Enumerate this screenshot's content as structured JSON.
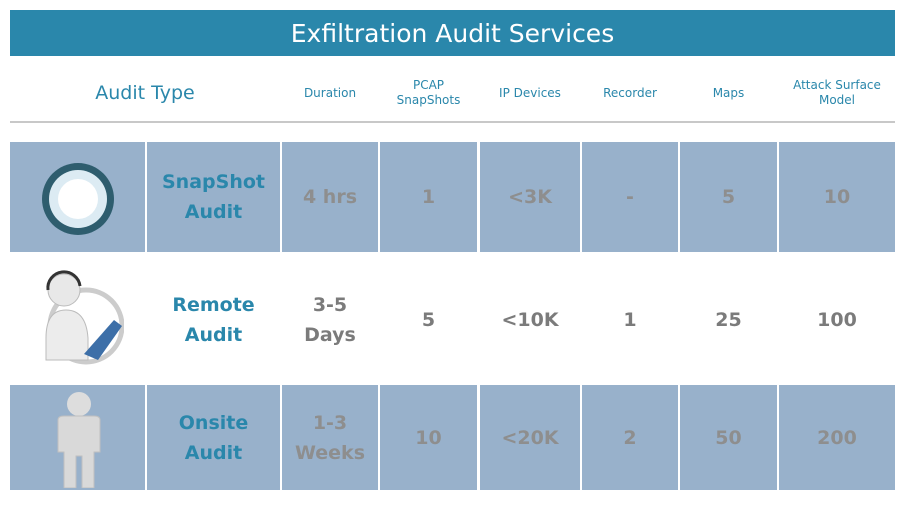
{
  "header": {
    "title": "Exfiltration Audit Services",
    "columns": [
      [
        "Audit Type"
      ],
      [
        "Duration"
      ],
      [
        "PCAP",
        "SnapShots"
      ],
      [
        "IP Devices"
      ],
      [
        "Recorder"
      ],
      [
        "Maps"
      ],
      [
        "Attack Surface",
        "Model"
      ]
    ]
  },
  "rows": [
    {
      "name": [
        "SnapShot",
        "Audit"
      ],
      "duration": [
        "4 hrs"
      ],
      "pcap": "1",
      "ip_devices": "<3K",
      "recorder": "-",
      "maps": "5",
      "attack_surface": "10"
    },
    {
      "name": [
        "Remote",
        "Audit"
      ],
      "duration": [
        "3-5",
        "Days"
      ],
      "pcap": "5",
      "ip_devices": "<10K",
      "recorder": "1",
      "maps": "25",
      "attack_surface": "100"
    },
    {
      "name": [
        "Onsite",
        "Audit"
      ],
      "duration": [
        "1-3",
        "Weeks"
      ],
      "pcap": "10",
      "ip_devices": "<20K",
      "recorder": "2",
      "maps": "50",
      "attack_surface": "200"
    }
  ]
}
